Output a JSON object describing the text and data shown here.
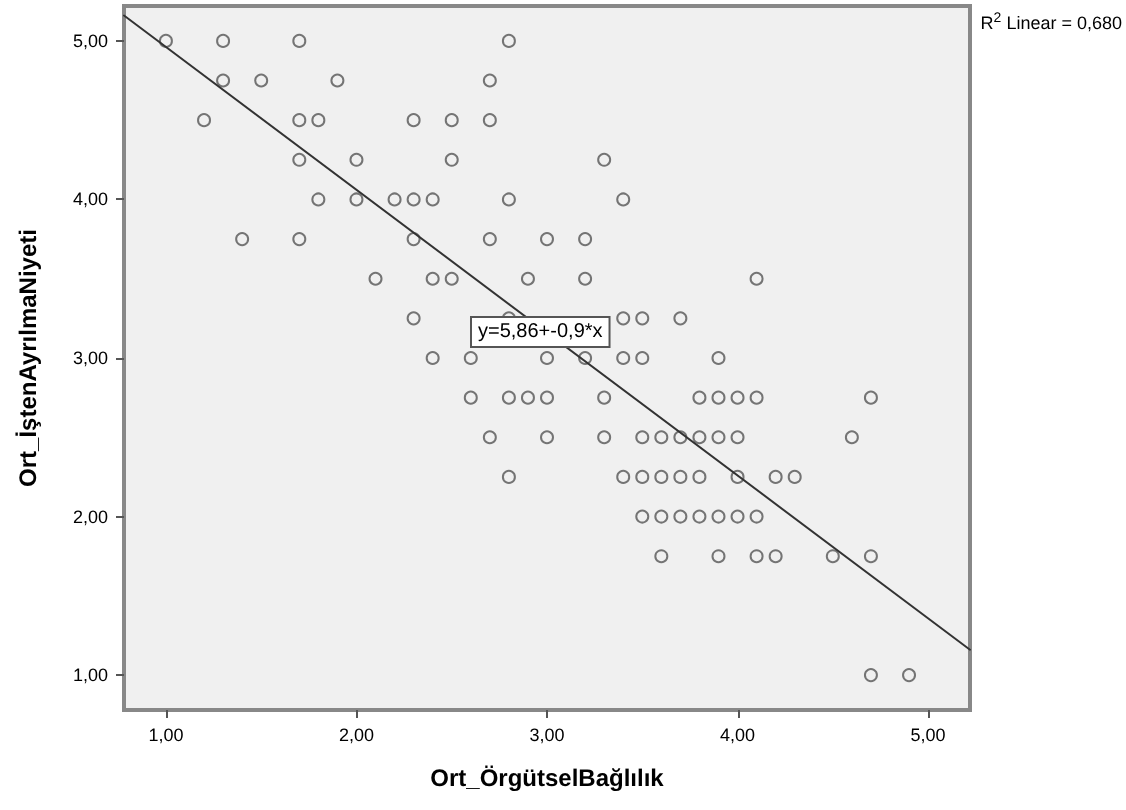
{
  "chart_data": {
    "type": "scatter",
    "xlabel": "Ort_ÖrgütselBağlılık",
    "ylabel": "Ort_İştenAyrılmaNiyeti",
    "xlim": [
      0.78,
      5.22
    ],
    "ylim": [
      0.78,
      5.22
    ],
    "xticks": [
      {
        "value": 1,
        "label": "1,00"
      },
      {
        "value": 2,
        "label": "2,00"
      },
      {
        "value": 3,
        "label": "3,00"
      },
      {
        "value": 4,
        "label": "4,00"
      },
      {
        "value": 5,
        "label": "5,00"
      }
    ],
    "yticks": [
      {
        "value": 1,
        "label": "1,00"
      },
      {
        "value": 2,
        "label": "2,00"
      },
      {
        "value": 3,
        "label": "3,00"
      },
      {
        "value": 4,
        "label": "4,00"
      },
      {
        "value": 5,
        "label": "5,00"
      }
    ],
    "grid": false,
    "marker": "circle",
    "series": [
      {
        "color": "#555555",
        "x": [
          1.0,
          1.3,
          1.7,
          2.8,
          1.3,
          1.5,
          1.9,
          2.7,
          1.2,
          1.7,
          1.8,
          2.3,
          2.5,
          2.7,
          1.7,
          2.0,
          2.5,
          3.3,
          1.8,
          2.0,
          2.2,
          2.3,
          2.4,
          2.8,
          3.4,
          1.4,
          1.7,
          2.3,
          2.7,
          3.0,
          3.2,
          2.1,
          2.4,
          2.5,
          2.9,
          3.2,
          4.1,
          2.3,
          2.8,
          3.4,
          3.5,
          3.7,
          2.4,
          2.6,
          3.0,
          3.2,
          3.4,
          3.5,
          3.9,
          2.6,
          2.8,
          2.9,
          3.0,
          3.3,
          3.8,
          3.9,
          4.0,
          4.1,
          4.7,
          2.7,
          3.0,
          3.3,
          3.5,
          3.6,
          3.7,
          3.8,
          3.9,
          4.0,
          4.6,
          2.8,
          3.4,
          3.5,
          3.6,
          3.7,
          3.8,
          4.0,
          4.2,
          4.3,
          3.5,
          3.6,
          3.7,
          3.8,
          3.9,
          4.0,
          4.1,
          3.6,
          3.9,
          4.1,
          4.2,
          4.5,
          4.7,
          4.7,
          4.9
        ],
        "values": [
          5,
          5,
          5,
          5,
          4.75,
          4.75,
          4.75,
          4.75,
          4.5,
          4.5,
          4.5,
          4.5,
          4.5,
          4.5,
          4.25,
          4.25,
          4.25,
          4.25,
          4,
          4,
          4,
          4,
          4,
          4,
          4,
          3.75,
          3.75,
          3.75,
          3.75,
          3.75,
          3.75,
          3.5,
          3.5,
          3.5,
          3.5,
          3.5,
          3.5,
          3.25,
          3.25,
          3.25,
          3.25,
          3.25,
          3,
          3,
          3,
          3,
          3,
          3,
          3,
          2.75,
          2.75,
          2.75,
          2.75,
          2.75,
          2.75,
          2.75,
          2.75,
          2.75,
          2.75,
          2.5,
          2.5,
          2.5,
          2.5,
          2.5,
          2.5,
          2.5,
          2.5,
          2.5,
          2.5,
          2.25,
          2.25,
          2.25,
          2.25,
          2.25,
          2.25,
          2.25,
          2.25,
          2.25,
          2,
          2,
          2,
          2,
          2,
          2,
          2,
          1.75,
          1.75,
          1.75,
          1.75,
          1.75,
          1.75,
          1,
          1
        ]
      },
      {
        "type": "line",
        "color": "#333333",
        "marker": "none",
        "x": [
          0.78,
          5.22
        ],
        "values": [
          5.16,
          1.16
        ]
      }
    ],
    "annotations": [
      "y=5,86+-0,9*x",
      "R$^{2}$ Linear = 0,680"
    ]
  }
}
